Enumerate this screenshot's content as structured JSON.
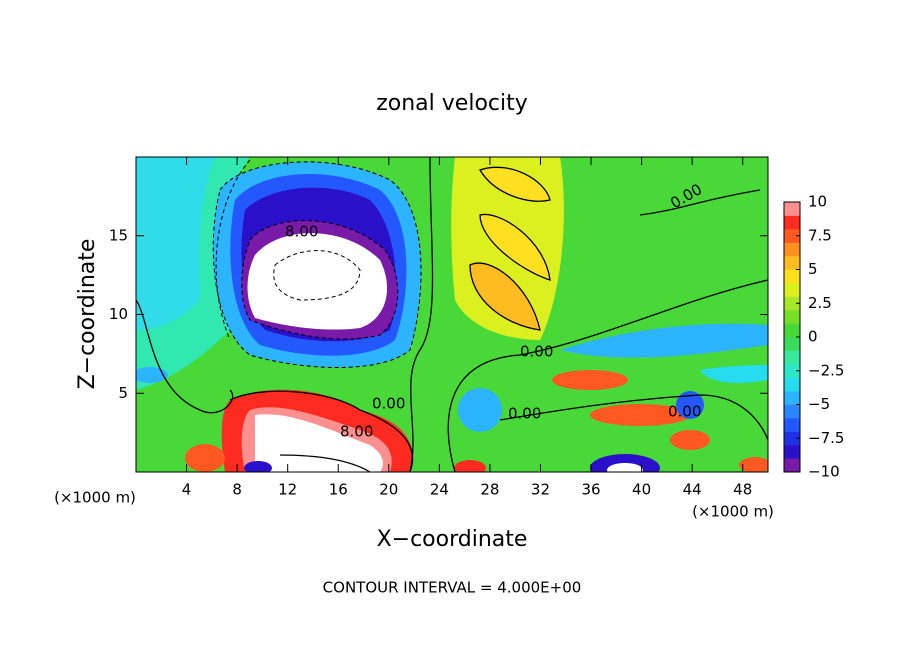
{
  "chart_data": {
    "type": "contour",
    "title": "zonal velocity",
    "x_label": "X−coordinate",
    "y_label": "Z−coordinate",
    "x_unit_labels": [
      "(×1000 m)",
      "(×1000 m)"
    ],
    "footer": "CONTOUR INTERVAL = 4.000E+00",
    "xlim": [
      0,
      50
    ],
    "xticks": [
      4,
      8,
      12,
      16,
      20,
      24,
      28,
      32,
      36,
      40,
      44,
      48
    ],
    "ylim": [
      0,
      20
    ],
    "yticks": [
      5,
      10,
      15
    ],
    "annotations": [
      "8.00",
      "8.00",
      "0.00",
      "0.00",
      "0.00",
      "0.00",
      "0.00"
    ],
    "colorbar": {
      "lim": [
        -10,
        10
      ],
      "ticks": [
        10,
        7.5,
        5,
        2.5,
        0,
        {
          "value": -2.5,
          "label": "−2.5"
        },
        {
          "value": -5,
          "label": "−5"
        },
        {
          "value": -7.5,
          "label": "−7.5"
        },
        {
          "value": -10,
          "label": "−10"
        }
      ],
      "colors": [
        "#7a1aa8",
        "#2a10c8",
        "#2030e8",
        "#2458ff",
        "#2c86ff",
        "#2cb4ff",
        "#28dcf0",
        "#2ce8c8",
        "#38e89c",
        "#38dc5c",
        "#48d838",
        "#78e028",
        "#a8e828",
        "#dcf020",
        "#ffe020",
        "#ffbc20",
        "#ff9020",
        "#ff5820",
        "#ff2a20",
        "#ff9090"
      ]
    }
  }
}
